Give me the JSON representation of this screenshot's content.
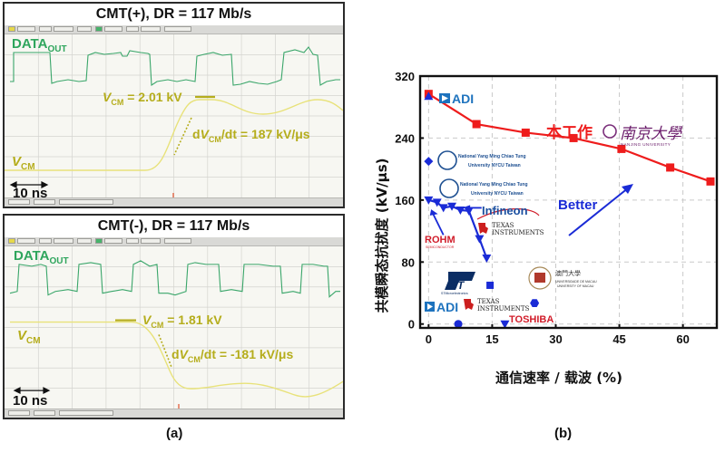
{
  "figure": {
    "caption_a": "(a)",
    "caption_b": "(b)"
  },
  "panel_a_top": {
    "title": "CMT(+), DR = 117 Mb/s",
    "data_label": "DATA",
    "data_label_sub": "OUT",
    "vcm_label": "V",
    "vcm_label_sub": "CM",
    "peak_label_v": "V",
    "peak_label_sub": "CM",
    "peak_label_value": " = 2.01 kV",
    "slope_label_prefix": "dV",
    "slope_label_sub": "CM",
    "slope_label_value": "/dt = 187 kV/μs",
    "scale_label": "10 ns"
  },
  "panel_a_bottom": {
    "title": "CMT(-), DR = 117 Mb/s",
    "data_label": "DATA",
    "data_label_sub": "OUT",
    "vcm_label": "V",
    "vcm_label_sub": "CM",
    "peak_label_v": "V",
    "peak_label_sub": "CM",
    "peak_label_value": " = 1.81 kV",
    "slope_label_prefix": "dV",
    "slope_label_sub": "CM",
    "slope_label_value": "/dt = -181 kV/μs",
    "scale_label": "10 ns"
  },
  "colors": {
    "data_trace": "#3aa66a",
    "vcm_trace": "#e8e27a",
    "vcm_text": "#b5ad1c",
    "this_work": "#ee1c1c",
    "others": "#1a2bd6",
    "grid": "#c9c9c9"
  },
  "chart_data": {
    "type": "scatter",
    "title": "",
    "xlabel": "通信速率 / 载波 (%)",
    "ylabel": "共模瞬态抗扰度 (kV/μs)",
    "xlim": [
      -2,
      68
    ],
    "ylim": [
      -5,
      320
    ],
    "xticks": [
      0,
      15,
      30,
      45,
      60
    ],
    "yticks": [
      0,
      80,
      160,
      240,
      320
    ],
    "grid": true,
    "series": [
      {
        "name": "本工作",
        "label": "本工作",
        "color": "#ee1c1c",
        "marker": "square",
        "line": true,
        "points": [
          [
            0,
            297
          ],
          [
            11.3,
            258
          ],
          [
            22.9,
            247
          ],
          [
            34.2,
            240
          ],
          [
            45.5,
            226
          ],
          [
            57,
            202
          ],
          [
            66.5,
            184
          ]
        ]
      },
      {
        "name": "ADI (high)",
        "color": "#1a2bd6",
        "marker": "triangle-up",
        "line": false,
        "points": [
          [
            0,
            294
          ]
        ]
      },
      {
        "name": "NYCU",
        "color": "#1a2bd6",
        "marker": "diamond",
        "line": false,
        "points": [
          [
            0,
            210
          ]
        ]
      },
      {
        "name": "Infineon / TI / ROHM cluster",
        "color": "#1a2bd6",
        "marker": "triangle-down",
        "line": true,
        "points": [
          [
            0,
            160
          ],
          [
            2,
            157
          ],
          [
            3.5,
            150
          ],
          [
            5.5,
            152
          ],
          [
            7.5,
            147
          ],
          [
            9.5,
            146
          ],
          [
            12,
            110
          ],
          [
            13.7,
            85
          ]
        ]
      },
      {
        "name": "ST",
        "color": "#1a2bd6",
        "marker": "square",
        "line": false,
        "points": [
          [
            14.5,
            50
          ]
        ]
      },
      {
        "name": "University of Macau",
        "color": "#1a2bd6",
        "marker": "hexagon",
        "line": false,
        "points": [
          [
            25,
            27
          ]
        ]
      },
      {
        "name": "ADI / TI (low)",
        "color": "#1a2bd6",
        "marker": "circle",
        "line": false,
        "points": [
          [
            7,
            0
          ]
        ]
      },
      {
        "name": "Toshiba",
        "color": "#1a2bd6",
        "marker": "triangle-down",
        "line": false,
        "points": [
          [
            18,
            0
          ]
        ]
      }
    ],
    "annotations": {
      "better": "Better",
      "this_work": "本工作",
      "nju_cn": "南京大學",
      "nju_en": "NANJING UNIVERSITY",
      "adi_top": "ADI",
      "adi_bottom": "ADI",
      "nycu_1_line1": "National Yang Ming Chiao Tung",
      "nycu_1_line2": "University NYCU Taiwan",
      "nycu_2_line1": "National Yang Ming Chiao Tung",
      "nycu_2_line2": "University NYCU Taiwan",
      "infineon": "Infineon",
      "ti_1_line1": "TEXAS",
      "ti_1_line2": "INSTRUMENTS",
      "ti_2_line1": "TEXAS",
      "ti_2_line2": "INSTRUMENTS",
      "rohm": "ROHM",
      "rohm_sub": "SEMICONDUCTOR",
      "st": "ST",
      "st_sub": "STMicroelectronics",
      "um_cn": "澳門大學",
      "um_pt": "UNIVERSIDADE DE MACAU",
      "um_en": "UNIVERSITY OF MACAU",
      "toshiba": "TOSHIBA"
    }
  }
}
